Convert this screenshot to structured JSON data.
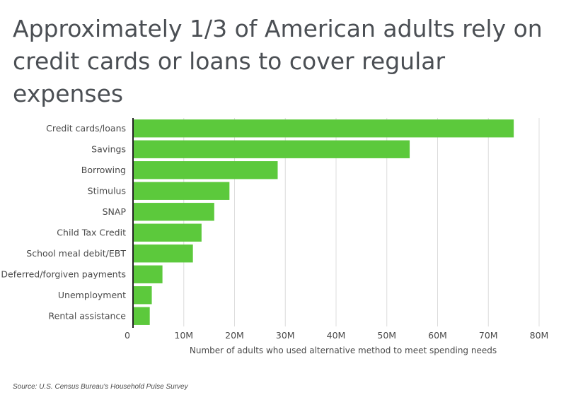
{
  "title_lines": [
    "Approximately 1/3 of American adults rely on",
    "credit cards or loans to cover regular expenses"
  ],
  "source": "Source:  U.S. Census Bureau's Household Pulse Survey",
  "colors": {
    "bar": "#5cc93c",
    "grid": "#dcdcdc",
    "axis": "#222222",
    "text": "#4a4a4a"
  },
  "chart_data": {
    "type": "bar",
    "orientation": "horizontal",
    "title": "Approximately 1/3 of American adults rely on credit cards or loans to cover regular expenses",
    "categories": [
      "Credit cards/loans",
      "Savings",
      "Borrowing",
      "Stimulus",
      "SNAP",
      "Child Tax Credit",
      "School meal debit/EBT",
      "Deferred/forgiven payments",
      "Unemployment",
      "Rental assistance"
    ],
    "values": [
      75000000,
      54500000,
      28500000,
      19000000,
      16000000,
      13500000,
      11800000,
      5800000,
      3700000,
      3300000
    ],
    "xlabel": "Number of adults who used alternative method to meet spending needs",
    "ylabel": "",
    "xlim": [
      0,
      80000000
    ],
    "ticks": [
      0,
      10000000,
      20000000,
      30000000,
      40000000,
      50000000,
      60000000,
      70000000,
      80000000
    ],
    "tick_labels": [
      "0",
      "10M",
      "20M",
      "30M",
      "40M",
      "50M",
      "60M",
      "70M",
      "80M"
    ],
    "grid": true
  }
}
